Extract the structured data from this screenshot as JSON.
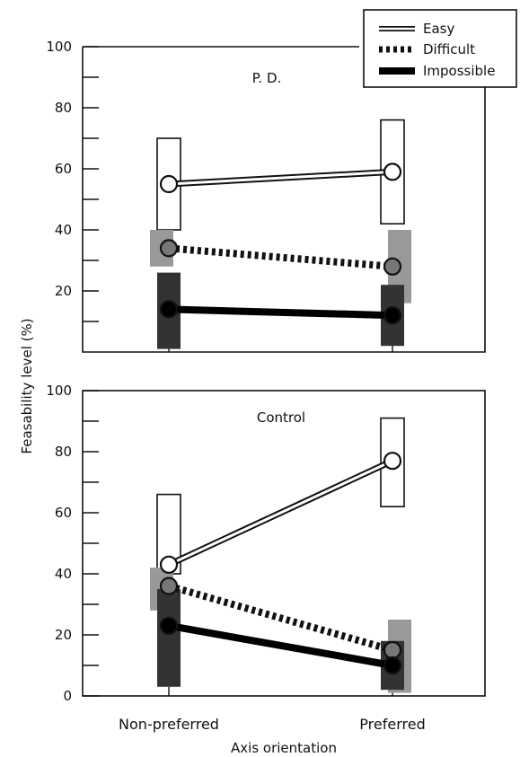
{
  "chart_data": [
    {
      "type": "line",
      "title": "P. D.",
      "categories": [
        "Non-preferred",
        "Preferred"
      ],
      "ylim": [
        0,
        100
      ],
      "yticks": [
        100,
        80,
        60,
        40,
        20
      ],
      "series": [
        {
          "name": "Easy",
          "values": [
            55,
            59
          ],
          "ranges": [
            [
              40,
              70
            ],
            [
              42,
              76
            ]
          ],
          "style": "double",
          "range_color": "#ffffff",
          "marker_color": "#ffffff"
        },
        {
          "name": "Difficult",
          "values": [
            34,
            28
          ],
          "ranges": [
            [
              28,
              40
            ],
            [
              16,
              40
            ]
          ],
          "style": "dotted",
          "range_color": "#999999",
          "marker_color": "#777777"
        },
        {
          "name": "Impossible",
          "values": [
            14,
            12
          ],
          "ranges": [
            [
              1,
              26
            ],
            [
              2,
              22
            ]
          ],
          "style": "solid",
          "range_color": "#333333",
          "marker_color": "#000000"
        }
      ]
    },
    {
      "type": "line",
      "title": "Control",
      "categories": [
        "Non-preferred",
        "Preferred"
      ],
      "ylim": [
        0,
        100
      ],
      "yticks": [
        100,
        80,
        60,
        40,
        20,
        0
      ],
      "series": [
        {
          "name": "Easy",
          "values": [
            43,
            77
          ],
          "ranges": [
            [
              40,
              66
            ],
            [
              62,
              91
            ]
          ],
          "style": "double",
          "range_color": "#ffffff",
          "marker_color": "#ffffff"
        },
        {
          "name": "Difficult",
          "values": [
            36,
            15
          ],
          "ranges": [
            [
              28,
              42
            ],
            [
              1,
              25
            ]
          ],
          "style": "dotted",
          "range_color": "#999999",
          "marker_color": "#777777"
        },
        {
          "name": "Impossible",
          "values": [
            23,
            10
          ],
          "ranges": [
            [
              3,
              35
            ],
            [
              2,
              18
            ]
          ],
          "style": "solid",
          "range_color": "#333333",
          "marker_color": "#000000"
        }
      ]
    }
  ],
  "axes": {
    "ylabel": "Feasability level (%)",
    "xlabel": "Axis orientation",
    "categories": [
      "Non-preferred",
      "Preferred"
    ]
  },
  "legend": {
    "placement": "top-right",
    "entries": [
      {
        "label": "Easy",
        "style": "double"
      },
      {
        "label": "Difficult",
        "style": "dotted"
      },
      {
        "label": "Impossible",
        "style": "solid"
      }
    ]
  }
}
